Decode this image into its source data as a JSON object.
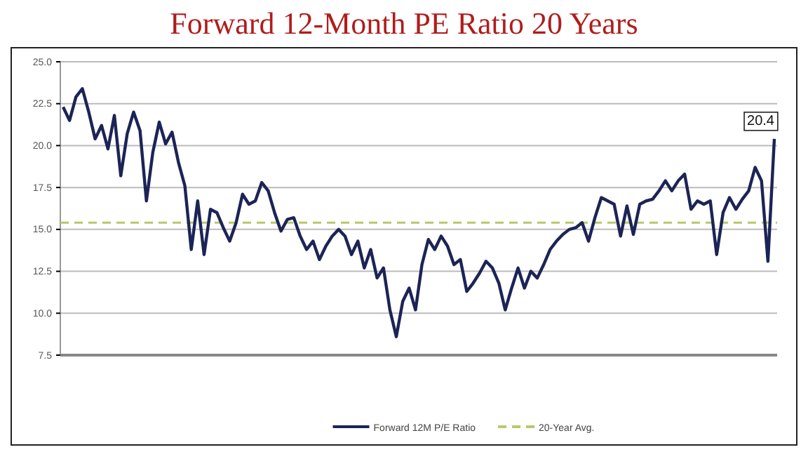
{
  "chart_data": {
    "type": "line",
    "title": "Forward 12-Month PE Ratio 20 Years",
    "categories": [
      null,
      null,
      null,
      null,
      null,
      null,
      null,
      null,
      null,
      null,
      null,
      null,
      null,
      null,
      null,
      null,
      null,
      null,
      null,
      null,
      null,
      null,
      null,
      null,
      null,
      null,
      null,
      null,
      null,
      null,
      null,
      null,
      null,
      null,
      null,
      null,
      null,
      null,
      null,
      null,
      null,
      null,
      null,
      null,
      null,
      null,
      null,
      null,
      null,
      null,
      null,
      null,
      null,
      null,
      null,
      null,
      null,
      null,
      null,
      null,
      null,
      null,
      null,
      null,
      null,
      null,
      null,
      null,
      null,
      null,
      null,
      null,
      null,
      null,
      null,
      null,
      null,
      null,
      null,
      null,
      null,
      null,
      null,
      null,
      null,
      null,
      null,
      null,
      null,
      null,
      null,
      null,
      null,
      null,
      null,
      null,
      null,
      null,
      null,
      null,
      null,
      null,
      null,
      null,
      null,
      null,
      null,
      null,
      null,
      null,
      null,
      null
    ],
    "series": [
      {
        "name": "Forward 12M P/E Ratio",
        "color": "#1c2456",
        "values": [
          22.3,
          21.5,
          22.9,
          23.4,
          22.0,
          20.4,
          21.2,
          19.8,
          21.8,
          18.2,
          20.7,
          22.0,
          20.9,
          16.7,
          19.6,
          21.4,
          20.1,
          20.8,
          19.0,
          17.6,
          13.8,
          16.7,
          13.5,
          16.2,
          16.0,
          15.1,
          14.3,
          15.4,
          17.1,
          16.5,
          16.7,
          17.8,
          17.3,
          16.0,
          14.9,
          15.6,
          15.7,
          14.6,
          13.8,
          14.3,
          13.2,
          14.0,
          14.6,
          15.0,
          14.6,
          13.5,
          14.3,
          12.7,
          13.8,
          12.1,
          12.7,
          10.2,
          8.6,
          10.7,
          11.5,
          10.2,
          12.9,
          14.4,
          13.8,
          14.6,
          14.0,
          12.9,
          13.2,
          11.3,
          11.8,
          12.4,
          13.1,
          12.7,
          11.8,
          10.2,
          11.5,
          12.7,
          11.5,
          12.5,
          12.1,
          12.9,
          13.8,
          14.3,
          14.7,
          15.0,
          15.1,
          15.4,
          14.3,
          15.7,
          16.9,
          16.7,
          16.5,
          14.6,
          16.4,
          14.7,
          16.5,
          16.7,
          16.8,
          17.3,
          17.9,
          17.3,
          17.9,
          18.3,
          16.2,
          16.7,
          16.5,
          16.7,
          13.5,
          16.0,
          16.9,
          16.2,
          16.8,
          17.3,
          18.7,
          17.9,
          13.1,
          20.4
        ],
        "value_labels": [
          null,
          null,
          null,
          null,
          null,
          null,
          null,
          null,
          null,
          null,
          null,
          null,
          null,
          null,
          null,
          null,
          null,
          null,
          null,
          null,
          null,
          null,
          null,
          null,
          null,
          null,
          null,
          null,
          null,
          null,
          null,
          null,
          null,
          null,
          null,
          null,
          null,
          null,
          null,
          null,
          null,
          null,
          null,
          null,
          null,
          null,
          null,
          null,
          null,
          null,
          null,
          null,
          null,
          null,
          null,
          null,
          null,
          null,
          null,
          null,
          null,
          null,
          null,
          null,
          null,
          null,
          null,
          null,
          null,
          null,
          null,
          null,
          null,
          null,
          null,
          null,
          null,
          null,
          null,
          null,
          null,
          null,
          null,
          null,
          null,
          null,
          null,
          null,
          null,
          null,
          null,
          null,
          null,
          null,
          null,
          null,
          null,
          null,
          null,
          null,
          null,
          null,
          null,
          null,
          null,
          null,
          null,
          null,
          null,
          null,
          null,
          "20.4"
        ]
      }
    ],
    "ylim": [
      7.5,
      25
    ],
    "yticks": [
      {
        "value": 7.5,
        "label": "7.5"
      },
      {
        "value": 10,
        "label": "10.0"
      },
      {
        "value": 12.5,
        "label": "12.5"
      },
      {
        "value": 15,
        "label": "15.0"
      },
      {
        "value": 17.5,
        "label": "17.5"
      },
      {
        "value": 20,
        "label": "20.0"
      },
      {
        "value": 22.5,
        "label": "22.5"
      },
      {
        "value": 25,
        "label": "25.0"
      }
    ],
    "ref_lines": [
      {
        "axis": "y",
        "value": 15.4,
        "label": "20-Year Avg.",
        "color": "#b8c96a",
        "line_style": "dashed"
      }
    ],
    "grid": "y",
    "legend": "bottom",
    "tick_labels": "y",
    "marker": "none",
    "line_style": "solid"
  }
}
